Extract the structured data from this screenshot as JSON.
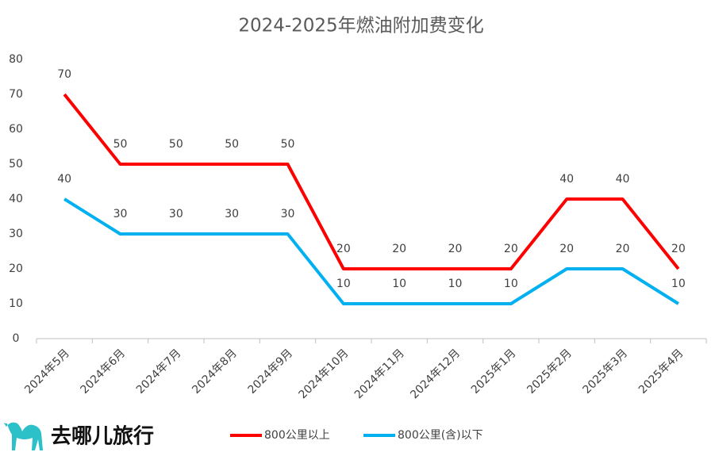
{
  "chart_data": {
    "type": "line",
    "title": "2024-2025年燃油附加费变化",
    "categories": [
      "2024年5月",
      "2024年6月",
      "2024年7月",
      "2024年8月",
      "2024年9月",
      "2024年10月",
      "2024年11月",
      "2024年12月",
      "2025年1月",
      "2025年2月",
      "2025年3月",
      "2025年4月"
    ],
    "series": [
      {
        "name": "800公里以上",
        "color": "#ff0000",
        "values": [
          70,
          50,
          50,
          50,
          50,
          20,
          20,
          20,
          20,
          40,
          40,
          20
        ]
      },
      {
        "name": "800公里(含)以下",
        "color": "#00b0f0",
        "values": [
          40,
          30,
          30,
          30,
          30,
          10,
          10,
          10,
          10,
          20,
          20,
          10
        ]
      }
    ],
    "ylim": [
      0,
      80
    ],
    "yticks": [
      0,
      10,
      20,
      30,
      40,
      50,
      60,
      70,
      80
    ],
    "grid": false,
    "legend": "bottom",
    "brand": "去哪儿旅行"
  }
}
